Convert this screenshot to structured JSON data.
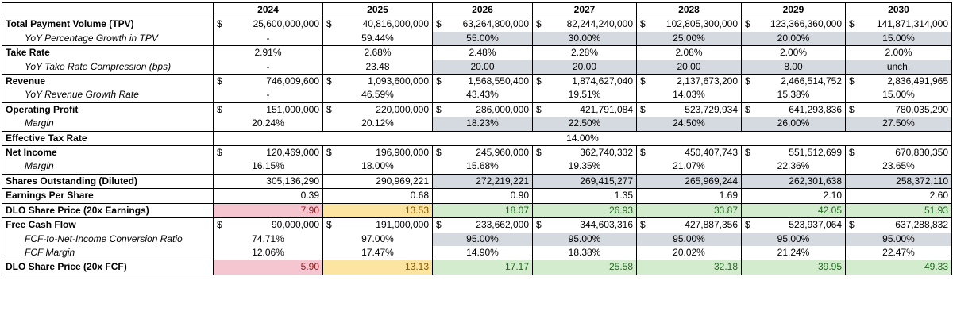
{
  "years": [
    "2024",
    "2025",
    "2026",
    "2027",
    "2028",
    "2029",
    "2030"
  ],
  "currency_symbol": "$",
  "rows": {
    "tpv": {
      "label": "Total Payment Volume (TPV)",
      "values": [
        "25,600,000,000",
        "40,816,000,000",
        "63,264,800,000",
        "82,244,240,000",
        "102,805,300,000",
        "123,366,360,000",
        "141,871,314,000"
      ]
    },
    "tpv_growth": {
      "label": "YoY Percentage Growth in TPV",
      "values": [
        "-",
        "59.44%",
        "55.00%",
        "30.00%",
        "25.00%",
        "20.00%",
        "15.00%"
      ]
    },
    "take_rate": {
      "label": "Take Rate",
      "values": [
        "2.91%",
        "2.68%",
        "2.48%",
        "2.28%",
        "2.08%",
        "2.00%",
        "2.00%"
      ]
    },
    "take_comp": {
      "label": "YoY Take Rate Compression (bps)",
      "values": [
        "-",
        "23.48",
        "20.00",
        "20.00",
        "20.00",
        "8.00",
        "unch."
      ]
    },
    "revenue": {
      "label": "Revenue",
      "values": [
        "746,009,600",
        "1,093,600,000",
        "1,568,550,400",
        "1,874,627,040",
        "2,137,673,200",
        "2,466,514,752",
        "2,836,491,965"
      ]
    },
    "rev_growth": {
      "label": "YoY Revenue Growth Rate",
      "values": [
        "-",
        "46.59%",
        "43.43%",
        "19.51%",
        "14.03%",
        "15.38%",
        "15.00%"
      ]
    },
    "op_profit": {
      "label": "Operating Profit",
      "values": [
        "151,000,000",
        "220,000,000",
        "286,000,000",
        "421,791,084",
        "523,729,934",
        "641,293,836",
        "780,035,290"
      ]
    },
    "op_margin": {
      "label": "Margin",
      "values": [
        "20.24%",
        "20.12%",
        "18.23%",
        "22.50%",
        "24.50%",
        "26.00%",
        "27.50%"
      ]
    },
    "tax": {
      "label": "Effective Tax Rate",
      "value": "14.00%"
    },
    "net_income": {
      "label": "Net Income",
      "values": [
        "120,469,000",
        "196,900,000",
        "245,960,000",
        "362,740,332",
        "450,407,743",
        "551,512,699",
        "670,830,350"
      ]
    },
    "ni_margin": {
      "label": "Margin",
      "values": [
        "16.15%",
        "18.00%",
        "15.68%",
        "19.35%",
        "21.07%",
        "22.36%",
        "23.65%"
      ]
    },
    "shares": {
      "label": "Shares Outstanding (Diluted)",
      "values": [
        "305,136,290",
        "290,969,221",
        "272,219,221",
        "269,415,277",
        "265,969,244",
        "262,301,638",
        "258,372,110"
      ]
    },
    "eps": {
      "label": "Earnings Per Share",
      "values": [
        "0.39",
        "0.68",
        "0.90",
        "1.35",
        "1.69",
        "2.10",
        "2.60"
      ]
    },
    "price_earn": {
      "label": "DLO Share Price (20x Earnings)",
      "values": [
        "7.90",
        "13.53",
        "18.07",
        "26.93",
        "33.87",
        "42.05",
        "51.93"
      ]
    },
    "fcf": {
      "label": "Free Cash Flow",
      "values": [
        "90,000,000",
        "191,000,000",
        "233,662,000",
        "344,603,316",
        "427,887,356",
        "523,937,064",
        "637,288,832"
      ]
    },
    "fcf_conv": {
      "label": "FCF-to-Net-Income Conversion Ratio",
      "values": [
        "74.71%",
        "97.00%",
        "95.00%",
        "95.00%",
        "95.00%",
        "95.00%",
        "95.00%"
      ]
    },
    "fcf_margin": {
      "label": "FCF Margin",
      "values": [
        "12.06%",
        "17.47%",
        "14.90%",
        "18.38%",
        "20.02%",
        "21.24%",
        "22.47%"
      ]
    },
    "price_fcf": {
      "label": "DLO Share Price (20x FCF)",
      "values": [
        "5.90",
        "13.13",
        "17.17",
        "25.58",
        "32.18",
        "39.95",
        "49.33"
      ]
    }
  },
  "colors": {
    "input_gray": "#d5d9e0",
    "price_red_bg": "#f5c6cf",
    "price_yellow_bg": "#fbe5a0",
    "price_green_bg": "#d3eccd"
  }
}
